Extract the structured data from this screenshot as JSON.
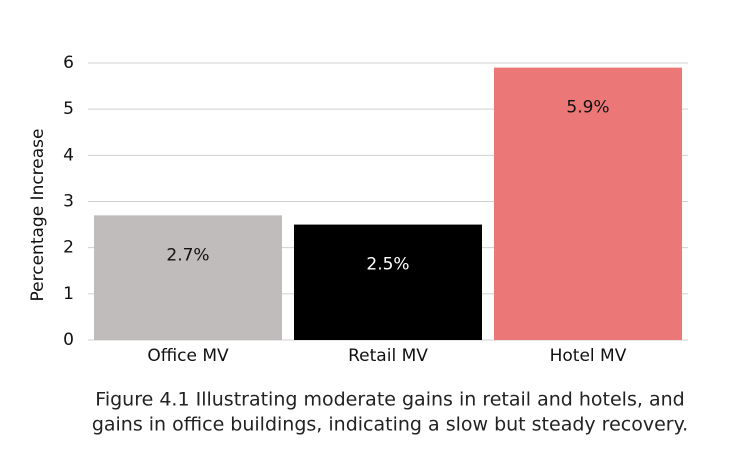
{
  "chart_data": {
    "type": "bar",
    "y_label": "Percentage Increase",
    "categories": [
      "Office MV",
      "Retail MV",
      "Hotel MV"
    ],
    "values": [
      2.7,
      2.5,
      5.9
    ],
    "value_labels": [
      "2.7%",
      "2.5%",
      "5.9%"
    ],
    "colors": [
      "#c0bcbc",
      "#000000",
      "#eb7777"
    ],
    "ylim": [
      0,
      6
    ],
    "yticks": [
      0,
      1,
      2,
      3,
      4,
      5,
      6
    ],
    "grid": true,
    "caption": [
      "Figure 4.1 Illustrating moderate gains in retail and hotels, and",
      "gains in office buildings, indicating a slow but steady recovery."
    ]
  }
}
